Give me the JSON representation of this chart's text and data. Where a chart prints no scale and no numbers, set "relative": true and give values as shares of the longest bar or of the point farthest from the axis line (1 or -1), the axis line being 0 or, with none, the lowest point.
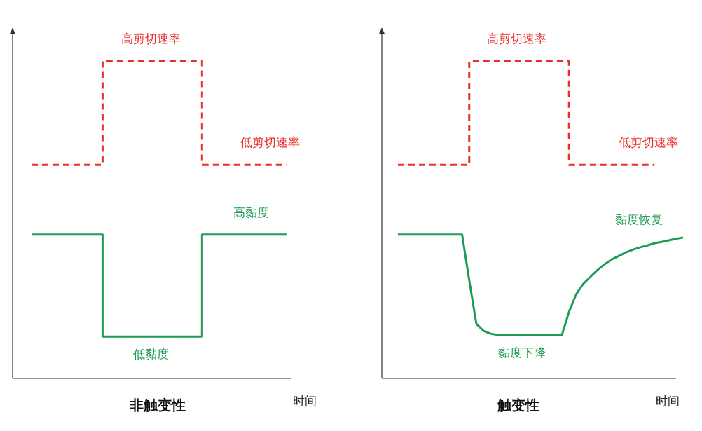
{
  "chart_data": [
    {
      "type": "line",
      "title": "**非触变性**",
      "xlabel": "时间",
      "relative": true,
      "tick_labels": false,
      "categories": [
        null,
        null,
        null,
        null,
        null,
        null,
        null,
        null,
        null,
        null,
        null,
        null,
        null,
        null,
        null,
        null,
        null,
        null,
        null,
        null,
        null,
        null,
        null,
        null,
        null,
        null,
        null,
        null,
        null,
        null,
        null,
        null,
        null,
        null,
        null,
        null,
        null
      ],
      "series": [
        {
          "type": "step",
          "color": "#e8302a",
          "line_style": "dashed",
          "values": [
            0.673,
            0.673,
            0.673,
            0.673,
            0.673,
            0.673,
            0.673,
            0.673,
            0.673,
            0.673,
            1,
            1,
            1,
            1,
            1,
            1,
            1,
            1,
            1,
            1,
            1,
            1,
            1,
            1,
            0.673,
            0.673,
            0.673,
            0.673,
            0.673,
            0.673,
            0.673,
            0.673,
            0.673,
            0.673,
            0.673,
            0.673,
            0.673
          ]
        },
        {
          "type": "step",
          "color": "#1e9b55",
          "line_style": "solid",
          "values": [
            0.453,
            0.453,
            0.453,
            0.453,
            0.453,
            0.453,
            0.453,
            0.453,
            0.453,
            0.453,
            0.132,
            0.132,
            0.132,
            0.132,
            0.132,
            0.132,
            0.132,
            0.132,
            0.132,
            0.132,
            0.132,
            0.132,
            0.132,
            0.132,
            0.453,
            0.453,
            0.453,
            0.453,
            0.453,
            0.453,
            0.453,
            0.453,
            0.453,
            0.453,
            0.453,
            0.453,
            0.453
          ]
        }
      ],
      "annotations": [
        {
          "text": "高剪切速率",
          "y": 1
        },
        {
          "text": "低剪切速率",
          "y": 0.673
        },
        {
          "text": "高黏度",
          "y": 0.453
        },
        {
          "text": "低黏度",
          "y": 0.132
        }
      ]
    },
    {
      "type": "line",
      "title": "**触变性**",
      "xlabel": "时间",
      "relative": true,
      "tick_labels": false,
      "categories": [
        null,
        null,
        null,
        null,
        null,
        null,
        null,
        null,
        null,
        null,
        null,
        null,
        null,
        null,
        null,
        null,
        null,
        null,
        null,
        null,
        null,
        null,
        null,
        null,
        null,
        null,
        null,
        null,
        null,
        null,
        null,
        null,
        null,
        null,
        null,
        null,
        null,
        null,
        null,
        null,
        null
      ],
      "series": [
        {
          "type": "step",
          "color": "#e8302a",
          "line_style": "dashed",
          "values": [
            0.673,
            0.673,
            0.673,
            0.673,
            0.673,
            0.673,
            0.673,
            0.673,
            0.673,
            0.673,
            1,
            1,
            1,
            1,
            1,
            1,
            1,
            1,
            1,
            1,
            1,
            1,
            1,
            1,
            0.673,
            0.673,
            0.673,
            0.673,
            0.673,
            0.673,
            0.673,
            0.673,
            0.673,
            0.673,
            0.673,
            0.673,
            0.673,
            null,
            null,
            null,
            null
          ]
        },
        {
          "type": "line",
          "color": "#1e9b55",
          "line_style": "solid",
          "values": [
            0.453,
            0.453,
            0.453,
            0.453,
            0.453,
            0.453,
            0.453,
            0.453,
            0.453,
            0.453,
            0.309,
            0.172,
            0.15,
            0.141,
            0.137,
            0.137,
            0.137,
            0.137,
            0.137,
            0.137,
            0.137,
            0.137,
            0.137,
            0.137,
            0.21,
            0.265,
            0.298,
            0.32,
            0.342,
            0.36,
            0.375,
            0.386,
            0.397,
            0.406,
            0.413,
            0.419,
            0.426,
            0.43,
            0.435,
            0.44,
            0.444
          ]
        }
      ],
      "annotations": [
        {
          "text": "高剪切速率",
          "y": 1
        },
        {
          "text": "低剪切速率",
          "y": 0.673
        },
        "黏度恢复",
        {
          "text": "黏度下降",
          "y": 0.137
        }
      ]
    }
  ]
}
